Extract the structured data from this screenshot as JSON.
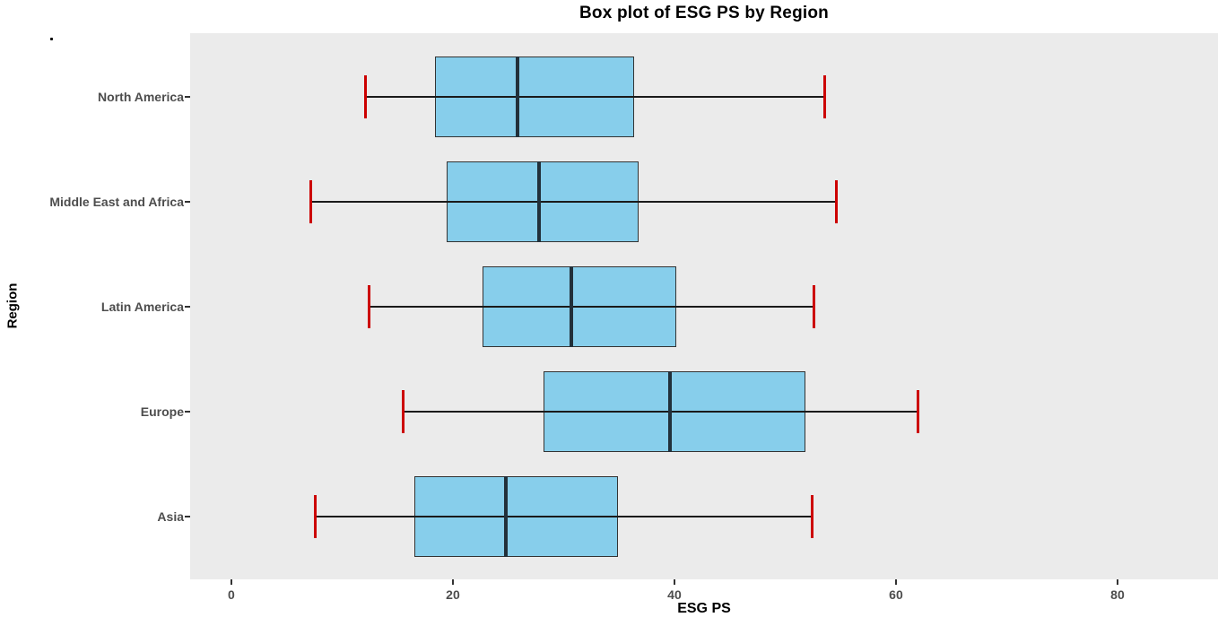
{
  "page": {
    "background": "#ffffff"
  },
  "artifacts": {
    "stray_dot_mark": "."
  },
  "chart_data": {
    "type": "boxplot",
    "orientation": "horizontal",
    "title": "Box plot of ESG PS by Region",
    "xlabel": "ESG PS",
    "ylabel": "Region",
    "x_ticks": [
      0,
      20,
      40,
      60,
      80
    ],
    "xlim": [
      -3.72,
      89.07
    ],
    "grid": "none",
    "legend": "none",
    "panel_background": "#EBEBEB",
    "categories": [
      "North America",
      "Middle East and Africa",
      "Latin America",
      "Europe",
      "Asia"
    ],
    "series": [
      {
        "category": "North America",
        "whisker_low": 12.1,
        "q1": 18.4,
        "median": 25.8,
        "q3": 36.4,
        "whisker_high": 53.6
      },
      {
        "category": "Middle East and Africa",
        "whisker_low": 7.2,
        "q1": 19.4,
        "median": 27.8,
        "q3": 36.8,
        "whisker_high": 54.6
      },
      {
        "category": "Latin America",
        "whisker_low": 12.4,
        "q1": 22.7,
        "median": 30.7,
        "q3": 40.2,
        "whisker_high": 52.6
      },
      {
        "category": "Europe",
        "whisker_low": 15.5,
        "q1": 28.2,
        "median": 39.6,
        "q3": 51.8,
        "whisker_high": 62.0
      },
      {
        "category": "Asia",
        "whisker_low": 7.6,
        "q1": 16.5,
        "median": 24.8,
        "q3": 34.9,
        "whisker_high": 52.4
      }
    ],
    "colors": {
      "box_fill": "#87CEEB",
      "box_border": "#333333",
      "median_line": "#22303A",
      "whisker_line": "#1A1A1A",
      "whisker_cap": "#CC0000",
      "tick_mark": "#333333",
      "tick_label": "#4D4D4D",
      "axis_title": "#000000",
      "title": "#000000"
    }
  }
}
